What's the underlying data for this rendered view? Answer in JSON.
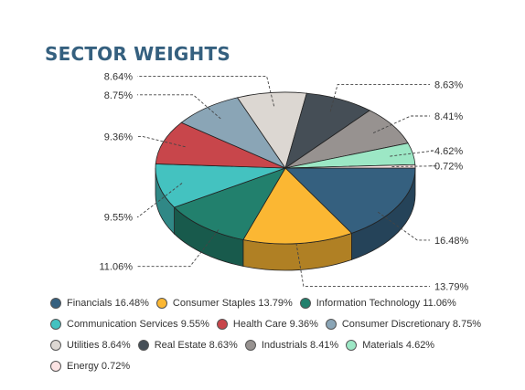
{
  "chart_data": {
    "type": "pie",
    "title": "SECTOR WEIGHTS",
    "style": "3d",
    "legend_position": "bottom",
    "slices": [
      {
        "name": "Financials",
        "value": 16.48,
        "label": "16.48%",
        "color": "#35607f"
      },
      {
        "name": "Consumer Staples",
        "value": 13.79,
        "label": "13.79%",
        "color": "#fbb733"
      },
      {
        "name": "Information Technology",
        "value": 11.06,
        "label": "11.06%",
        "color": "#22806d"
      },
      {
        "name": "Communication Services",
        "value": 9.55,
        "label": "9.55%",
        "color": "#44c2c0"
      },
      {
        "name": "Health Care",
        "value": 9.36,
        "label": "9.36%",
        "color": "#c8464b"
      },
      {
        "name": "Consumer Discretionary",
        "value": 8.75,
        "label": "8.75%",
        "color": "#8aa5b6"
      },
      {
        "name": "Utilities",
        "value": 8.64,
        "label": "8.64%",
        "color": "#dcd7d2"
      },
      {
        "name": "Real Estate",
        "value": 8.63,
        "label": "8.63%",
        "color": "#454e56"
      },
      {
        "name": "Industrials",
        "value": 8.41,
        "label": "8.41%",
        "color": "#979290"
      },
      {
        "name": "Materials",
        "value": 4.62,
        "label": "4.62%",
        "color": "#9ce7c5"
      },
      {
        "name": "Energy",
        "value": 0.72,
        "label": "0.72%",
        "color": "#fbe3e3"
      }
    ],
    "legend": [
      "Financials 16.48%",
      "Consumer Staples 13.79%",
      "Information Technology 11.06%",
      "Communication Services 9.55%",
      "Health Care 9.36%",
      "Consumer Discretionary 8.75%",
      "Utilities 8.64%",
      "Real Estate 8.63%",
      "Industrials 8.41%",
      "Materials 4.62%",
      "Energy 0.72%"
    ]
  }
}
